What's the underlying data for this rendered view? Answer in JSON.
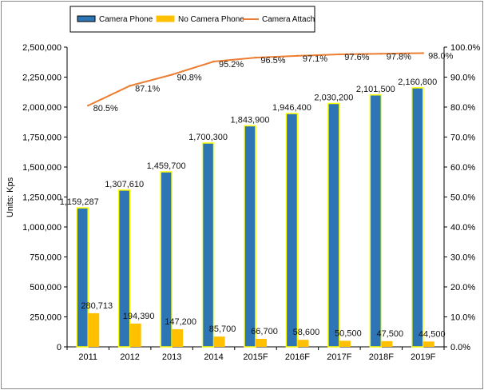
{
  "chart_data": {
    "type": "bar",
    "categories": [
      "2011",
      "2012",
      "2013",
      "2014",
      "2015F",
      "2016F",
      "2017F",
      "2018F",
      "2019F"
    ],
    "series": [
      {
        "name": "Camera Phone",
        "type": "bar",
        "axis": "left",
        "values": [
          1159287,
          1307610,
          1459700,
          1700300,
          1843900,
          1946400,
          2030200,
          2101500,
          2160800
        ],
        "labels": [
          "1,159,287",
          "1,307,610",
          "1,459,700",
          "1,700,300",
          "1,843,900",
          "1,946,400",
          "2,030,200",
          "2,101,500",
          "2,160,800"
        ],
        "color": "#2E75B6",
        "edge_color": "#FFFF00"
      },
      {
        "name": "No Camera Phone",
        "type": "bar",
        "axis": "left",
        "values": [
          280713,
          194390,
          147200,
          85700,
          66700,
          58600,
          50500,
          47500,
          44500
        ],
        "labels": [
          "280,713",
          "194,390",
          "147,200",
          "85,700",
          "66,700",
          "58,600",
          "50,500",
          "47,500",
          "44,500"
        ],
        "color": "#FFC000"
      },
      {
        "name": "Camera Attach",
        "type": "line",
        "axis": "right",
        "values": [
          80.5,
          87.1,
          90.8,
          95.2,
          96.5,
          97.1,
          97.6,
          97.8,
          98.0
        ],
        "labels": [
          "80.5%",
          "87.1%",
          "90.8%",
          "95.2%",
          "96.5%",
          "97.1%",
          "97.6%",
          "97.8%",
          "98.0%"
        ],
        "color": "#ED7D31"
      }
    ],
    "ylabel": "Units: Kps",
    "ylim": [
      0,
      2500000
    ],
    "yticks": [
      "0",
      "250,000",
      "500,000",
      "750,000",
      "1,000,000",
      "1,250,000",
      "1,500,000",
      "1,750,000",
      "2,000,000",
      "2,250,000",
      "2,500,000"
    ],
    "y2lim": [
      0,
      100
    ],
    "y2ticks": [
      "0.0%",
      "10.0%",
      "20.0%",
      "30.0%",
      "40.0%",
      "50.0%",
      "60.0%",
      "70.0%",
      "80.0%",
      "90.0%",
      "100.0%"
    ],
    "grid": false,
    "legend_position": "top-left"
  }
}
